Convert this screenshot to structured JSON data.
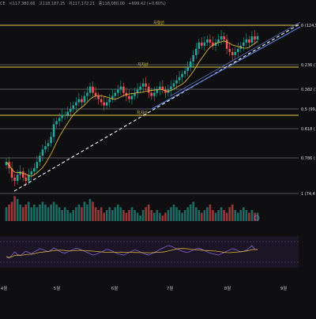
{
  "header": {
    "ticker_fragment": "CE",
    "open": "시117,380.66",
    "high": "고118,187.25",
    "low": "저117,172.21",
    "close": "종118,080.00",
    "change": "+699.42 (+0.60%)"
  },
  "colors": {
    "background": "#0f0f12",
    "up": "#26a69a",
    "down": "#ef5350",
    "ma_line": "#d6b23a",
    "fib_line": "#c8c8c8",
    "level_line": "#e6c84a",
    "trend_dashed": "#ffffff",
    "channel": "#5b7bd6",
    "rsi_line": "#7e57c2",
    "rsi_signal": "#d6b23a"
  },
  "chart_data": {
    "type": "candlestick",
    "x_tick_labels": [
      "4월",
      "5월",
      "6월",
      "7월",
      "8월",
      "9월"
    ],
    "fib_levels": [
      {
        "ratio": "0",
        "label": "0 (124,5"
      },
      {
        "ratio": "0.236",
        "label": "0.236 (1"
      },
      {
        "ratio": "0.382",
        "label": "0.382 (1"
      },
      {
        "ratio": "0.5",
        "label": "0.5 (99,"
      },
      {
        "ratio": "0.618",
        "label": "0.618 ("
      },
      {
        "ratio": "0.786",
        "label": "0.786 ("
      },
      {
        "ratio": "1",
        "label": "1 (74,4"
      }
    ],
    "horizontal_levels": [
      {
        "label": "저항선"
      },
      {
        "label": "지지선"
      },
      {
        "label": "지지선"
      }
    ],
    "candle_closes": [
      82,
      80,
      77,
      76,
      78,
      79,
      77,
      76,
      78,
      79,
      80,
      82,
      84,
      86,
      87,
      88,
      90,
      94,
      95,
      96,
      97,
      97,
      98,
      99,
      100,
      101,
      102,
      101,
      103,
      104,
      106,
      104,
      103,
      102,
      101,
      100,
      101,
      102,
      103,
      104,
      105,
      106,
      104,
      103,
      102,
      103,
      104,
      105,
      106,
      107,
      106,
      104,
      103,
      104,
      105,
      106,
      105,
      104,
      105,
      106,
      107,
      108,
      109,
      110,
      111,
      112,
      114,
      116,
      118,
      120,
      119,
      120,
      121,
      120,
      119,
      120,
      121,
      122,
      121,
      118,
      117,
      116,
      117,
      118,
      119,
      120,
      121,
      120,
      122,
      121,
      122
    ],
    "volumes": [
      0.5,
      0.6,
      0.7,
      0.9,
      0.8,
      0.6,
      0.5,
      0.6,
      0.7,
      0.5,
      0.6,
      0.5,
      0.6,
      0.7,
      0.6,
      0.5,
      0.6,
      0.7,
      0.6,
      0.5,
      0.4,
      0.5,
      0.4,
      0.3,
      0.4,
      0.5,
      0.6,
      0.5,
      0.7,
      0.6,
      0.8,
      0.7,
      0.5,
      0.4,
      0.5,
      0.3,
      0.4,
      0.5,
      0.4,
      0.5,
      0.6,
      0.5,
      0.4,
      0.3,
      0.4,
      0.5,
      0.4,
      0.3,
      0.2,
      0.4,
      0.5,
      0.6,
      0.4,
      0.3,
      0.4,
      0.3,
      0.2,
      0.3,
      0.4,
      0.5,
      0.6,
      0.5,
      0.4,
      0.3,
      0.4,
      0.5,
      0.6,
      0.7,
      0.5,
      0.4,
      0.3,
      0.4,
      0.5,
      0.6,
      0.4,
      0.3,
      0.4,
      0.5,
      0.4,
      0.3,
      0.5,
      0.6,
      0.4,
      0.3,
      0.4,
      0.5,
      0.4,
      0.3,
      0.4,
      0.3,
      0.3
    ],
    "rsi": [
      35,
      30,
      40,
      50,
      42,
      38,
      45,
      52,
      48,
      44,
      50,
      55,
      60,
      58,
      54,
      50,
      56,
      62,
      58,
      52,
      48,
      46,
      50,
      54,
      58,
      62,
      60,
      56,
      52,
      48,
      44,
      40,
      42,
      46,
      50,
      54,
      58,
      56,
      52,
      48,
      44,
      42,
      40,
      44,
      48,
      52,
      56,
      54,
      50,
      46,
      42,
      40,
      44,
      48,
      52,
      58,
      62,
      66,
      70,
      68,
      64,
      60,
      56,
      52,
      50,
      48,
      52,
      56,
      60,
      62,
      58,
      54,
      50,
      46,
      44,
      42,
      40,
      44,
      48,
      52,
      56,
      60,
      58,
      54,
      50,
      52,
      56,
      62,
      70,
      58,
      56
    ]
  }
}
